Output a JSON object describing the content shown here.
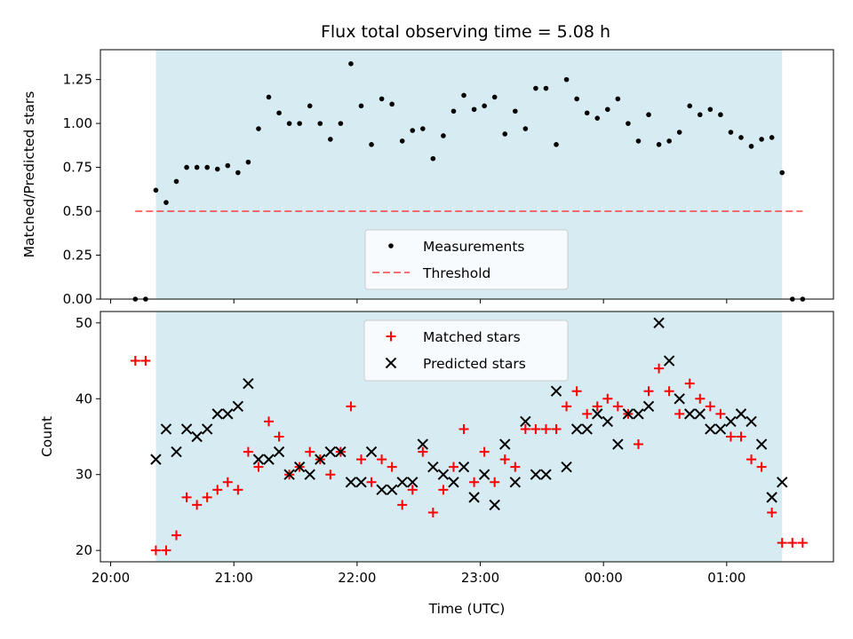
{
  "title": "Flux total observing time = 5.08 h",
  "colors": {
    "band": "#add8e6",
    "threshold": "#ff0000",
    "measurements": "#000000",
    "matched": "#ff0000",
    "predicted": "#000000"
  },
  "chart_data": [
    {
      "type": "scatter",
      "panel": "top",
      "title": "Flux total observing time = 5.08 h",
      "xlabel": "",
      "ylabel": "Matched/Predicted stars",
      "xlim": [
        "19:55",
        "25:52"
      ],
      "ylim": [
        0,
        1.42
      ],
      "yticks": [
        0.0,
        0.25,
        0.5,
        0.75,
        1.0,
        1.25
      ],
      "ytick_labels": [
        "0.00",
        "0.25",
        "0.50",
        "0.75",
        "1.00",
        "1.25"
      ],
      "observing_window": {
        "start": "20:22",
        "end": "25:27",
        "color": "#add8e6"
      },
      "threshold": {
        "label": "Threshold",
        "value": 0.5,
        "x_start": "20:12",
        "x_end": "25:37",
        "style": "dashed",
        "color": "#ff0000"
      },
      "legend": {
        "placement": "lower-center",
        "entries": [
          "Measurements",
          "Threshold"
        ]
      },
      "series": [
        {
          "name": "Measurements",
          "marker": "dot",
          "color": "#000000",
          "x": [
            "20:12",
            "20:17",
            "20:22",
            "20:27",
            "20:32",
            "20:37",
            "20:42",
            "20:47",
            "20:52",
            "20:57",
            "21:02",
            "21:07",
            "21:12",
            "21:17",
            "21:22",
            "21:27",
            "21:32",
            "21:37",
            "21:42",
            "21:47",
            "21:52",
            "21:57",
            "22:02",
            "22:07",
            "22:12",
            "22:17",
            "22:22",
            "22:27",
            "22:32",
            "22:37",
            "22:42",
            "22:47",
            "22:52",
            "22:57",
            "23:02",
            "23:07",
            "23:12",
            "23:17",
            "23:22",
            "23:27",
            "23:32",
            "23:37",
            "23:42",
            "23:47",
            "23:52",
            "23:57",
            "24:02",
            "24:07",
            "24:12",
            "24:17",
            "24:22",
            "24:27",
            "24:32",
            "24:37",
            "24:42",
            "24:47",
            "24:52",
            "24:57",
            "25:02",
            "25:07",
            "25:12",
            "25:17",
            "25:22",
            "25:27",
            "25:32",
            "25:37"
          ],
          "y": [
            0.0,
            0.0,
            0.62,
            0.55,
            0.67,
            0.75,
            0.75,
            0.75,
            0.74,
            0.76,
            0.72,
            0.78,
            0.97,
            1.15,
            1.06,
            1.0,
            1.0,
            1.1,
            1.0,
            0.91,
            1.0,
            1.34,
            1.1,
            0.88,
            1.14,
            1.11,
            0.9,
            0.96,
            0.97,
            0.8,
            0.93,
            1.07,
            1.16,
            1.08,
            1.1,
            1.15,
            0.94,
            1.07,
            0.97,
            1.2,
            1.2,
            0.88,
            1.25,
            1.14,
            1.06,
            1.03,
            1.08,
            1.14,
            1.0,
            0.9,
            1.05,
            0.88,
            0.9,
            0.95,
            1.1,
            1.05,
            1.08,
            1.05,
            0.95,
            0.92,
            0.87,
            0.91,
            0.92,
            0.72,
            0.0,
            0.0
          ]
        }
      ]
    },
    {
      "type": "scatter",
      "panel": "bottom",
      "title": "",
      "xlabel": "Time (UTC)",
      "ylabel": "Count",
      "xlim": [
        "19:55",
        "25:52"
      ],
      "ylim": [
        18.5,
        51.5
      ],
      "xticks": [
        "20:00",
        "21:00",
        "22:00",
        "23:00",
        "24:00",
        "25:00"
      ],
      "xtick_labels": [
        "20:00",
        "21:00",
        "22:00",
        "23:00",
        "00:00",
        "01:00"
      ],
      "yticks": [
        20,
        30,
        40,
        50
      ],
      "ytick_labels": [
        "20",
        "30",
        "40",
        "50"
      ],
      "observing_window": {
        "start": "20:22",
        "end": "25:27",
        "color": "#add8e6"
      },
      "legend": {
        "placement": "top-center",
        "entries": [
          "Matched stars",
          "Predicted stars"
        ]
      },
      "series": [
        {
          "name": "Matched stars",
          "marker": "plus",
          "color": "#ff0000",
          "x": [
            "20:12",
            "20:17",
            "20:22",
            "20:27",
            "20:32",
            "20:37",
            "20:42",
            "20:47",
            "20:52",
            "20:57",
            "21:02",
            "21:07",
            "21:12",
            "21:17",
            "21:22",
            "21:27",
            "21:32",
            "21:37",
            "21:42",
            "21:47",
            "21:52",
            "21:57",
            "22:02",
            "22:07",
            "22:12",
            "22:17",
            "22:22",
            "22:27",
            "22:32",
            "22:37",
            "22:42",
            "22:47",
            "22:52",
            "22:57",
            "23:02",
            "23:07",
            "23:12",
            "23:17",
            "23:22",
            "23:27",
            "23:32",
            "23:37",
            "23:42",
            "23:47",
            "23:52",
            "23:57",
            "24:02",
            "24:07",
            "24:12",
            "24:17",
            "24:22",
            "24:27",
            "24:32",
            "24:37",
            "24:42",
            "24:47",
            "24:52",
            "24:57",
            "25:02",
            "25:07",
            "25:12",
            "25:17",
            "25:22",
            "25:27",
            "25:32",
            "25:37"
          ],
          "y": [
            45,
            45,
            20,
            20,
            22,
            27,
            26,
            27,
            28,
            29,
            28,
            33,
            31,
            37,
            35,
            30,
            31,
            33,
            32,
            30,
            33,
            39,
            32,
            29,
            32,
            31,
            26,
            28,
            33,
            25,
            28,
            31,
            36,
            29,
            33,
            29,
            32,
            31,
            36,
            36,
            36,
            36,
            39,
            41,
            38,
            39,
            40,
            39,
            38,
            34,
            41,
            44,
            41,
            38,
            42,
            40,
            39,
            38,
            35,
            35,
            32,
            31,
            25,
            21,
            21,
            21
          ]
        },
        {
          "name": "Predicted stars",
          "marker": "x",
          "color": "#000000",
          "x": [
            "20:22",
            "20:27",
            "20:32",
            "20:37",
            "20:42",
            "20:47",
            "20:52",
            "20:57",
            "21:02",
            "21:07",
            "21:12",
            "21:17",
            "21:22",
            "21:27",
            "21:32",
            "21:37",
            "21:42",
            "21:47",
            "21:52",
            "21:57",
            "22:02",
            "22:07",
            "22:12",
            "22:17",
            "22:22",
            "22:27",
            "22:32",
            "22:37",
            "22:42",
            "22:47",
            "22:52",
            "22:57",
            "23:02",
            "23:07",
            "23:12",
            "23:17",
            "23:22",
            "23:27",
            "23:32",
            "23:37",
            "23:42",
            "23:47",
            "23:52",
            "23:57",
            "24:02",
            "24:07",
            "24:12",
            "24:17",
            "24:22",
            "24:27",
            "24:32",
            "24:37",
            "24:42",
            "24:47",
            "24:52",
            "24:57",
            "25:02",
            "25:07",
            "25:12",
            "25:17",
            "25:22",
            "25:27"
          ],
          "y": [
            32,
            36,
            33,
            36,
            35,
            36,
            38,
            38,
            39,
            42,
            32,
            32,
            33,
            30,
            31,
            30,
            32,
            33,
            33,
            29,
            29,
            33,
            28,
            28,
            29,
            29,
            34,
            31,
            30,
            29,
            31,
            27,
            30,
            26,
            34,
            29,
            37,
            30,
            30,
            41,
            31,
            36,
            36,
            38,
            37,
            34,
            38,
            38,
            39,
            50,
            45,
            40,
            38,
            38,
            36,
            36,
            37,
            38,
            37,
            34,
            27,
            29
          ]
        }
      ]
    }
  ]
}
